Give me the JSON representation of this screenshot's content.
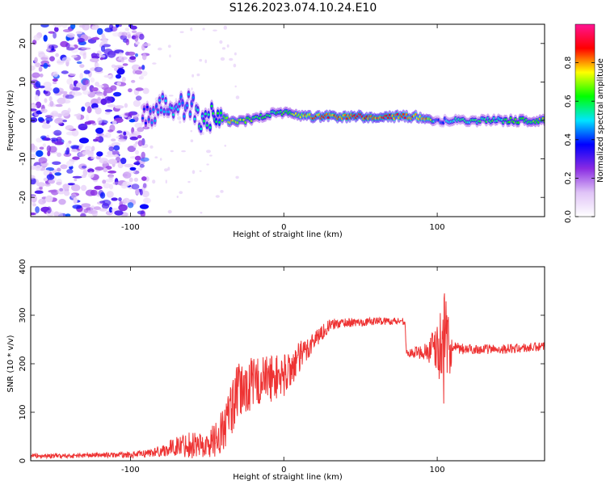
{
  "title": "S126.2023.074.10.24.E10",
  "chart_data": [
    {
      "type": "heatmap",
      "title": "S126.2023.074.10.24.E10",
      "xlabel": "Height of straight line (km)",
      "ylabel": "Frequency (Hz)",
      "xlim": [
        -165,
        170
      ],
      "ylim": [
        -25,
        25
      ],
      "x_ticks": [
        -100,
        0,
        100
      ],
      "y_ticks": [
        -20,
        -10,
        0,
        10,
        20
      ],
      "colorbar": {
        "label": "Normalized spectral amplitude",
        "range": [
          0,
          1
        ],
        "ticks": [
          0.0,
          0.2,
          0.4,
          0.6,
          0.8
        ],
        "tick_labels": [
          "0.0",
          "0.2",
          "0.4",
          "0.6",
          "0.8"
        ],
        "colors": [
          "#ffffff",
          "#e0c4f7",
          "#8a2be2",
          "#0000ff",
          "#00e5ff",
          "#00ff00",
          "#ffff00",
          "#ff0000",
          "#ff1493"
        ]
      },
      "noise_region": {
        "x": [
          -165,
          -93
        ],
        "amplitude": 0.25
      },
      "ridge": {
        "x": [
          -92,
          -80,
          -70,
          -60,
          -55,
          -45,
          -35,
          -25,
          -15,
          -5,
          5,
          15,
          40,
          70,
          85,
          95,
          100,
          110,
          140,
          170
        ],
        "frequency": [
          0,
          4,
          3,
          4,
          0,
          1,
          0,
          0,
          1,
          2,
          2,
          1,
          1,
          1,
          1,
          0.5,
          0,
          0,
          0,
          0
        ],
        "amplitude": [
          0.4,
          0.5,
          0.5,
          0.5,
          0.55,
          0.6,
          0.8,
          0.7,
          0.6,
          0.6,
          0.7,
          0.85,
          0.9,
          0.9,
          0.85,
          0.8,
          0.4,
          0.55,
          0.6,
          0.7
        ]
      }
    },
    {
      "type": "line",
      "xlabel": "Height of straight line (km)",
      "ylabel": "SNR (10 * v/v)",
      "xlim": [
        -165,
        170
      ],
      "ylim": [
        0,
        400
      ],
      "x_ticks": [
        -100,
        0,
        100
      ],
      "y_ticks": [
        0,
        100,
        200,
        300,
        400
      ],
      "color": "#ee3333",
      "series": [
        {
          "x": [
            -165,
            -140,
            -120,
            -100,
            -90,
            -80,
            -70,
            -60,
            -50,
            -40,
            -30,
            -20,
            -10,
            0,
            10,
            20,
            30,
            40,
            50,
            60,
            70,
            79,
            80,
            90,
            100,
            105,
            110,
            120,
            140,
            160,
            170
          ],
          "y": [
            10,
            10,
            12,
            12,
            15,
            20,
            30,
            35,
            30,
            60,
            140,
            160,
            170,
            175,
            210,
            250,
            280,
            285,
            285,
            288,
            288,
            288,
            220,
            225,
            230,
            225,
            230,
            230,
            230,
            233,
            235
          ],
          "noise_amp": [
            5,
            5,
            5,
            6,
            8,
            12,
            20,
            30,
            25,
            50,
            60,
            55,
            50,
            45,
            35,
            20,
            12,
            10,
            8,
            8,
            8,
            8,
            8,
            15,
            50,
            120,
            15,
            10,
            10,
            10,
            10
          ]
        }
      ]
    }
  ]
}
